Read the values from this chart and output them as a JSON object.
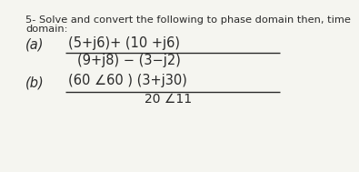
{
  "title_line1": "5- Solve and convert the following to phase domain then, time",
  "title_line2": "domain:",
  "part_a_label": "(a)",
  "part_a_num": "(5+j6)+ (10 +j6)",
  "part_a_den": "(9+j8) − (3−j2)",
  "part_b_label": "(b)",
  "part_b_num": "(60 ∠60 ) (3+j30)",
  "part_b_den": "20 ∠11",
  "bg_color": "#f5f5f0",
  "text_color": "#2a2a2a",
  "title_fontsize": 8.2,
  "label_fontsize": 10.5,
  "expr_fontsize": 10.5,
  "den_fontsize": 10.0
}
